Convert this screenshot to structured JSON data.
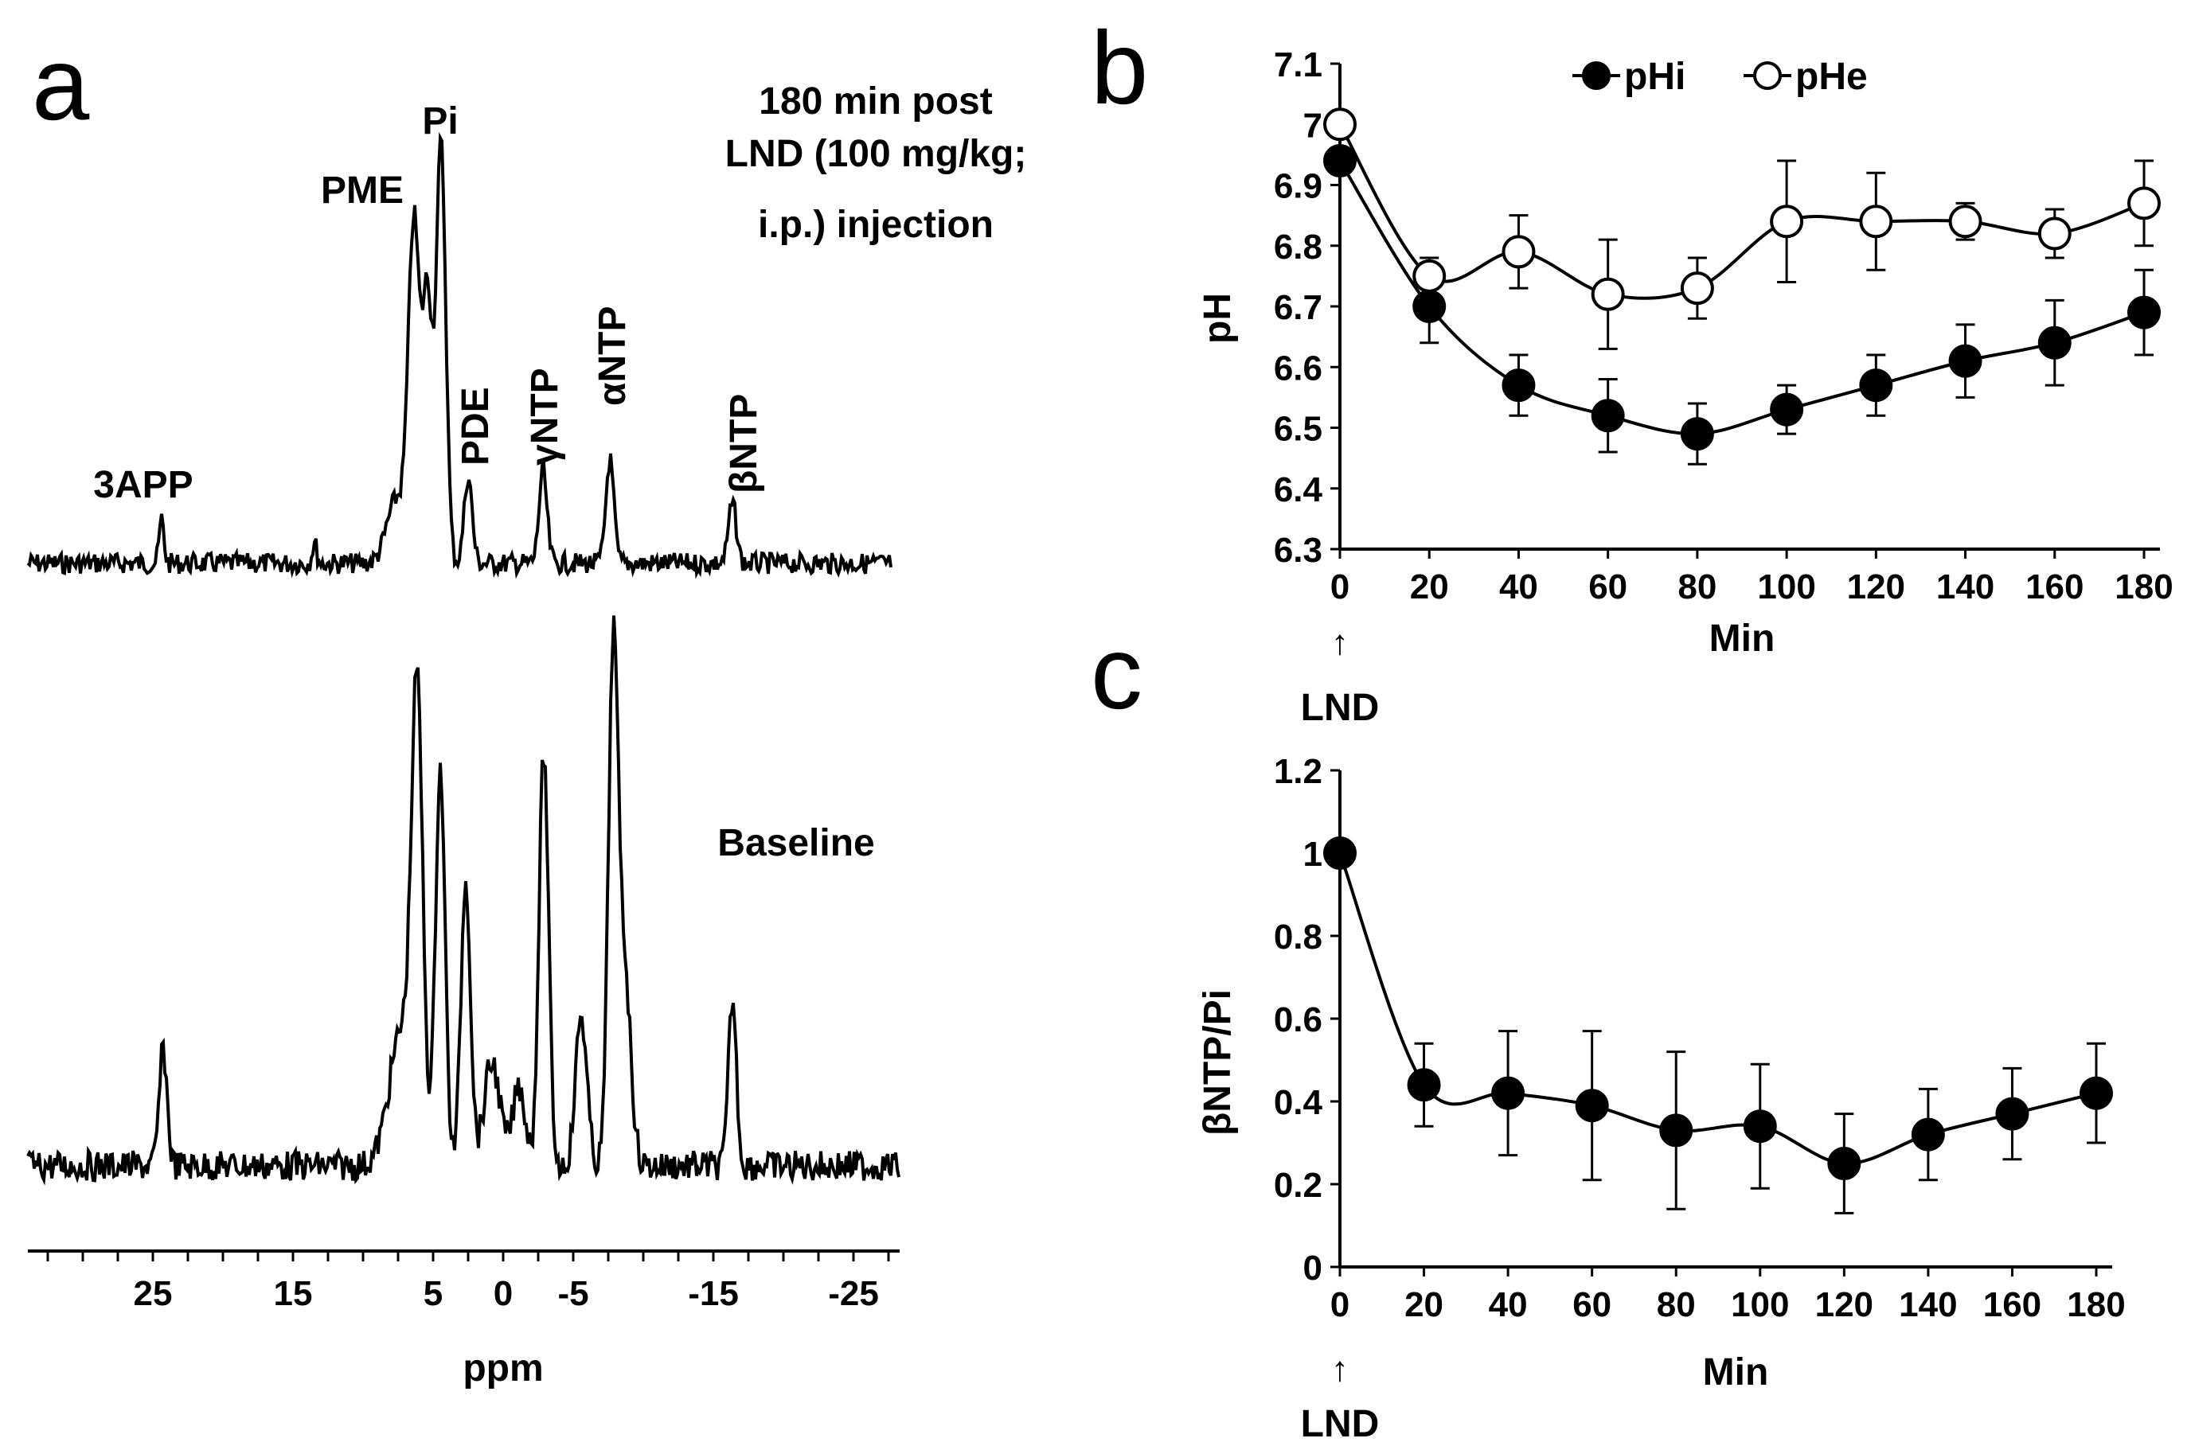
{
  "figure": {
    "panels": [
      "a",
      "b",
      "c"
    ]
  },
  "panel_a": {
    "letter": "a",
    "top_title_lines": [
      "180 min post",
      "LND (100 mg/kg;",
      "i.p.) injection"
    ],
    "baseline_label": "Baseline",
    "peak_labels": {
      "app": "3APP",
      "pme": "PME",
      "pi": "Pi",
      "pde": "PDE",
      "gntp": "γNTP",
      "antp": "αNTP",
      "bntp": "βNTP"
    },
    "x_ticks": [
      "25",
      "15",
      "5",
      "0",
      "-5",
      "-15",
      "-25"
    ],
    "x_title": "ppm"
  },
  "chart_data": [
    {
      "id": "panel_b",
      "letter": "b",
      "type": "line",
      "title": "",
      "xlabel": "Min",
      "ylabel": "pH",
      "x": [
        0,
        20,
        40,
        60,
        80,
        100,
        120,
        140,
        160,
        180
      ],
      "x_ticks": [
        0,
        20,
        40,
        60,
        80,
        100,
        120,
        140,
        160,
        180
      ],
      "y_ticks": [
        6.3,
        6.4,
        6.5,
        6.6,
        6.7,
        6.8,
        6.9,
        7,
        7.1
      ],
      "xlim": [
        0,
        180
      ],
      "ylim": [
        6.3,
        7.1
      ],
      "annotation": "LND",
      "legend": "top",
      "series": [
        {
          "name": "pHi",
          "marker": "filled",
          "values": [
            6.94,
            6.7,
            6.57,
            6.52,
            6.49,
            6.53,
            6.57,
            6.61,
            6.64,
            6.69
          ],
          "errors": [
            0.02,
            0.06,
            0.05,
            0.06,
            0.05,
            0.04,
            0.05,
            0.06,
            0.07,
            0.07
          ]
        },
        {
          "name": "pHe",
          "marker": "open",
          "values": [
            7.0,
            6.75,
            6.79,
            6.72,
            6.73,
            6.84,
            6.84,
            6.84,
            6.82,
            6.87
          ],
          "errors": [
            0.01,
            0.03,
            0.06,
            0.09,
            0.05,
            0.1,
            0.08,
            0.03,
            0.04,
            0.07
          ]
        }
      ]
    },
    {
      "id": "panel_c",
      "letter": "c",
      "type": "line",
      "title": "",
      "xlabel": "Min",
      "ylabel": "βNTP/Pi",
      "x": [
        0,
        20,
        40,
        60,
        80,
        100,
        120,
        140,
        160,
        180
      ],
      "x_ticks": [
        0,
        20,
        40,
        60,
        80,
        100,
        120,
        140,
        160,
        180
      ],
      "y_ticks": [
        0,
        0.2,
        0.4,
        0.6,
        0.8,
        1,
        1.2
      ],
      "xlim": [
        0,
        180
      ],
      "ylim": [
        0,
        1.2
      ],
      "annotation": "LND",
      "series": [
        {
          "name": "βNTP/Pi",
          "marker": "filled",
          "values": [
            1.0,
            0.44,
            0.42,
            0.39,
            0.33,
            0.34,
            0.25,
            0.32,
            0.37,
            0.42
          ],
          "errors": [
            0.0,
            0.1,
            0.15,
            0.18,
            0.19,
            0.15,
            0.12,
            0.11,
            0.11,
            0.12
          ]
        }
      ]
    }
  ]
}
